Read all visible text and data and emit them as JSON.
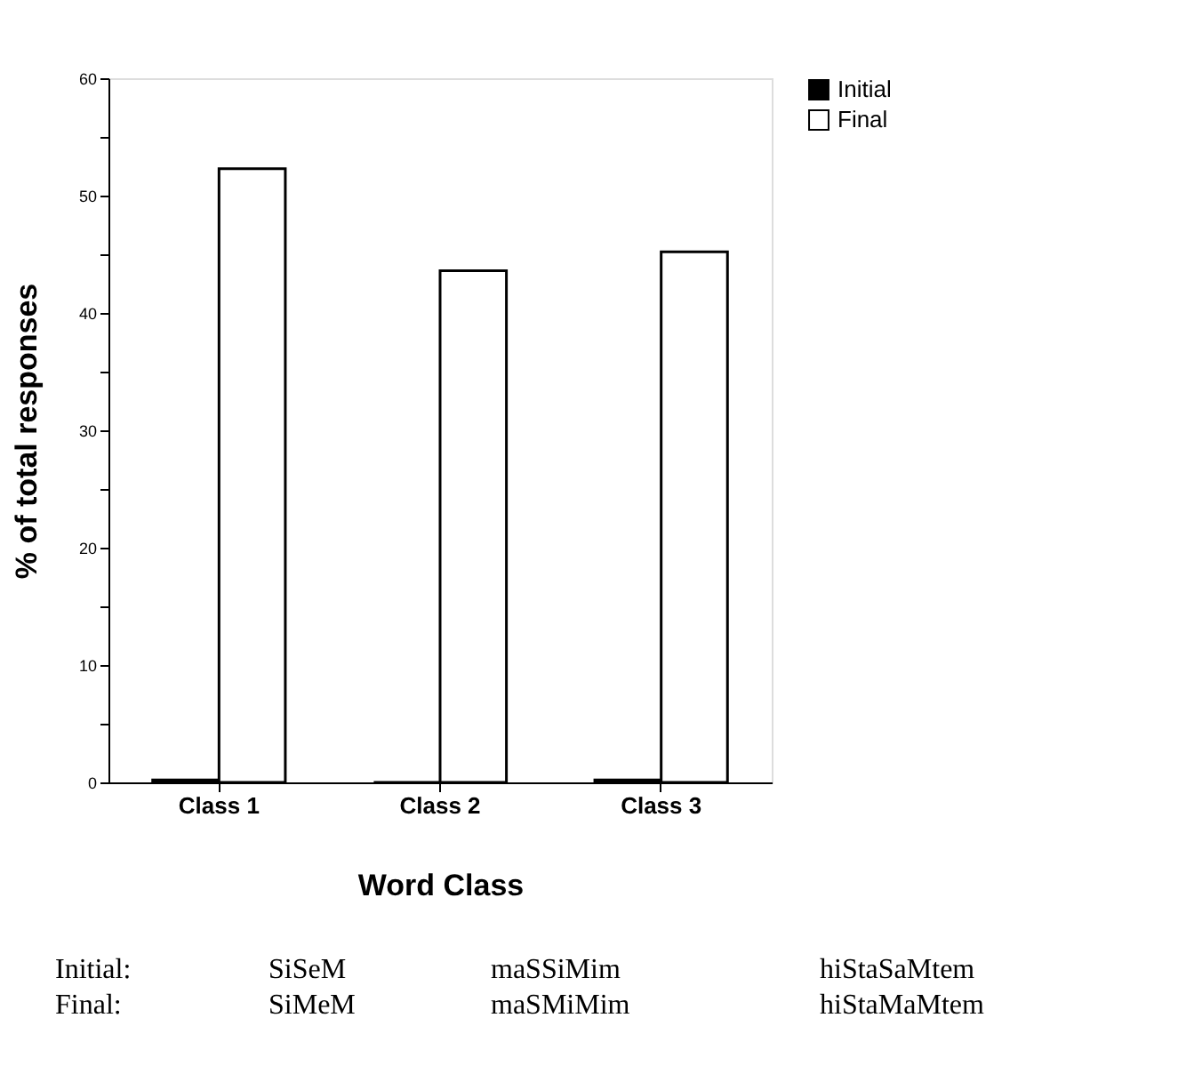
{
  "chart_data": {
    "type": "bar",
    "xlabel": "Word Class",
    "ylabel": "% of total responses",
    "categories": [
      "Class 1",
      "Class 2",
      "Class 3"
    ],
    "series": [
      {
        "name": "Initial",
        "color": "#000000",
        "values": [
          0.2,
          0,
          0.2
        ]
      },
      {
        "name": "Final",
        "color": "#ffffff",
        "values": [
          52.3,
          43.6,
          45.2
        ]
      }
    ],
    "ylim": [
      0,
      60
    ],
    "yticks": [
      0,
      {
        "value": 5,
        "label": null
      },
      10,
      {
        "value": 15,
        "label": null
      },
      20,
      {
        "value": 25,
        "label": null
      },
      30,
      {
        "value": 35,
        "label": null
      },
      40,
      {
        "value": 45,
        "label": null
      },
      50,
      {
        "value": 55,
        "label": null
      },
      60
    ],
    "grid": false,
    "legend": "right",
    "annotations": [
      "Initial:",
      "SiSeM",
      "maSSiMim",
      "hiStaSaMtem",
      "Final:",
      "SiMeM",
      "maSMiMim",
      "hiStaMaMtem"
    ]
  }
}
